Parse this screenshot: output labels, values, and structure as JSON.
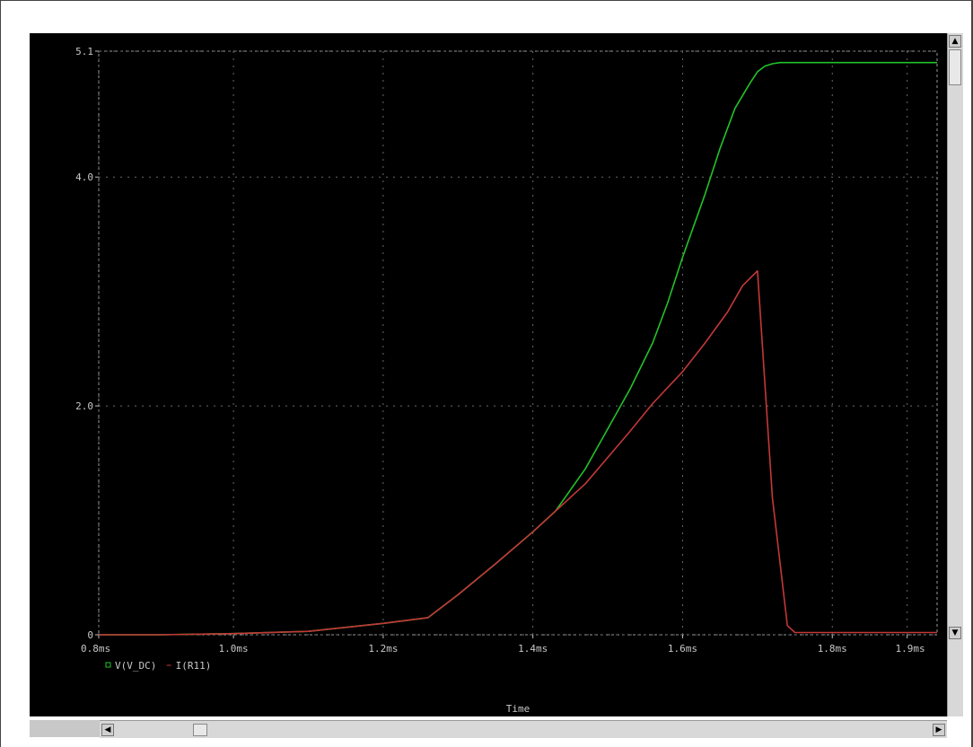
{
  "chart_data": {
    "type": "line",
    "title": "",
    "xlabel": "Time",
    "ylabel": "",
    "xlim": [
      0.82,
      1.94
    ],
    "ylim": [
      0,
      5.1
    ],
    "x_ticks": [
      {
        "value": 0.82,
        "label": "0.8ms"
      },
      {
        "value": 1.0,
        "label": "1.0ms"
      },
      {
        "value": 1.2,
        "label": "1.2ms"
      },
      {
        "value": 1.4,
        "label": "1.4ms"
      },
      {
        "value": 1.6,
        "label": "1.6ms"
      },
      {
        "value": 1.8,
        "label": "1.8ms"
      },
      {
        "value": 1.9,
        "label": "1.9ms"
      }
    ],
    "y_ticks": [
      {
        "value": 0,
        "label": "0"
      },
      {
        "value": 2.0,
        "label": "2.0"
      },
      {
        "value": 4.0,
        "label": "4.0"
      },
      {
        "value": 5.1,
        "label": "5.1"
      }
    ],
    "grid": true,
    "legend_placement": "bottom-left",
    "series": [
      {
        "name": "V(V_DC)",
        "color": "#22c22a",
        "marker": "square",
        "x": [
          0.82,
          0.9,
          1.0,
          1.1,
          1.2,
          1.26,
          1.3,
          1.35,
          1.4,
          1.43,
          1.47,
          1.5,
          1.53,
          1.56,
          1.58,
          1.6,
          1.63,
          1.65,
          1.67,
          1.69,
          1.7,
          1.71,
          1.72,
          1.73,
          1.75,
          1.8,
          1.9,
          1.94
        ],
        "y": [
          0,
          0,
          0.01,
          0.03,
          0.1,
          0.15,
          0.35,
          0.62,
          0.9,
          1.08,
          1.45,
          1.8,
          2.15,
          2.55,
          2.9,
          3.3,
          3.85,
          4.25,
          4.6,
          4.82,
          4.92,
          4.97,
          4.99,
          5.0,
          5.0,
          5.0,
          5.0,
          5.0
        ]
      },
      {
        "name": "I(R11)",
        "color": "#c43838",
        "marker": "",
        "x": [
          0.82,
          0.9,
          1.0,
          1.1,
          1.2,
          1.26,
          1.3,
          1.35,
          1.4,
          1.43,
          1.47,
          1.5,
          1.53,
          1.56,
          1.6,
          1.63,
          1.66,
          1.68,
          1.7,
          1.72,
          1.74,
          1.75,
          1.8,
          1.9,
          1.94
        ],
        "y": [
          0,
          0,
          0.01,
          0.03,
          0.1,
          0.15,
          0.35,
          0.62,
          0.9,
          1.08,
          1.32,
          1.55,
          1.78,
          2.02,
          2.3,
          2.55,
          2.82,
          3.05,
          3.18,
          1.2,
          0.08,
          0.02,
          0.02,
          0.02,
          0.02
        ]
      }
    ]
  }
}
